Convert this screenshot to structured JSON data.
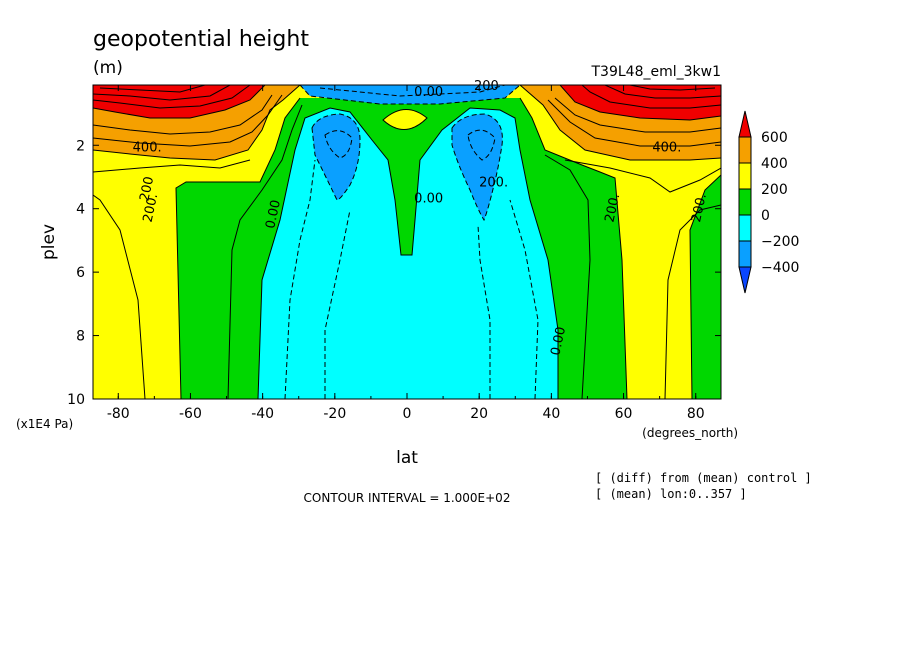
{
  "chart_data": {
    "type": "contour",
    "title": "geopotential height",
    "units": "(m)",
    "experiment": "T39L48_eml_3kw1",
    "xlabel": "lat",
    "x_units": "(degrees_north)",
    "ylabel": "plev",
    "y_units": "(x1E4 Pa)",
    "xlim": [
      -87,
      87
    ],
    "ylim": [
      10,
      0.1
    ],
    "x_ticks": [
      -80,
      -60,
      -40,
      -20,
      0,
      20,
      40,
      60,
      80
    ],
    "x_tick_labels": [
      "-80",
      "-60",
      "-40",
      "-20",
      "0",
      "20",
      "40",
      "60",
      "80"
    ],
    "y_ticks": [
      2,
      4,
      6,
      8,
      10
    ],
    "y_tick_labels": [
      "2",
      "4",
      "6",
      "8",
      "10"
    ],
    "colorbar": {
      "labels": [
        "600",
        "400",
        "200",
        "0",
        "−200",
        "−400"
      ],
      "colors": [
        "#f00000",
        "#f5a000",
        "#ffff00",
        "#00d700",
        "#00ffff",
        "#0aa0ff",
        "#0a46ff"
      ]
    },
    "contour_labels": [
      {
        "text": "400.",
        "lat": -72,
        "plev": 2.2
      },
      {
        "text": "200",
        "lat": -71,
        "plev": 3.4
      },
      {
        "text": "200.",
        "lat": -70,
        "plev": 4.0
      },
      {
        "text": "0.00",
        "lat": -36,
        "plev": 4.2
      },
      {
        "text": "0.00",
        "lat": 6,
        "plev": 0.45
      },
      {
        "text": "200",
        "lat": 22,
        "plev": 0.25
      },
      {
        "text": "0.00",
        "lat": 6,
        "plev": 3.8
      },
      {
        "text": "200.",
        "lat": 24,
        "plev": 3.3
      },
      {
        "text": "400.",
        "lat": 72,
        "plev": 2.2
      },
      {
        "text": "200.",
        "lat": 58,
        "plev": 4.0
      },
      {
        "text": "200.",
        "lat": 82,
        "plev": 4.0
      },
      {
        "text": "0.00",
        "lat": 43,
        "plev": 8.2
      }
    ],
    "contour_interval_text": "CONTOUR INTERVAL = 1.000E+02",
    "notes": [
      "[ (diff) from (mean) control ]",
      "[ (mean) lon:0..357 ]"
    ]
  }
}
